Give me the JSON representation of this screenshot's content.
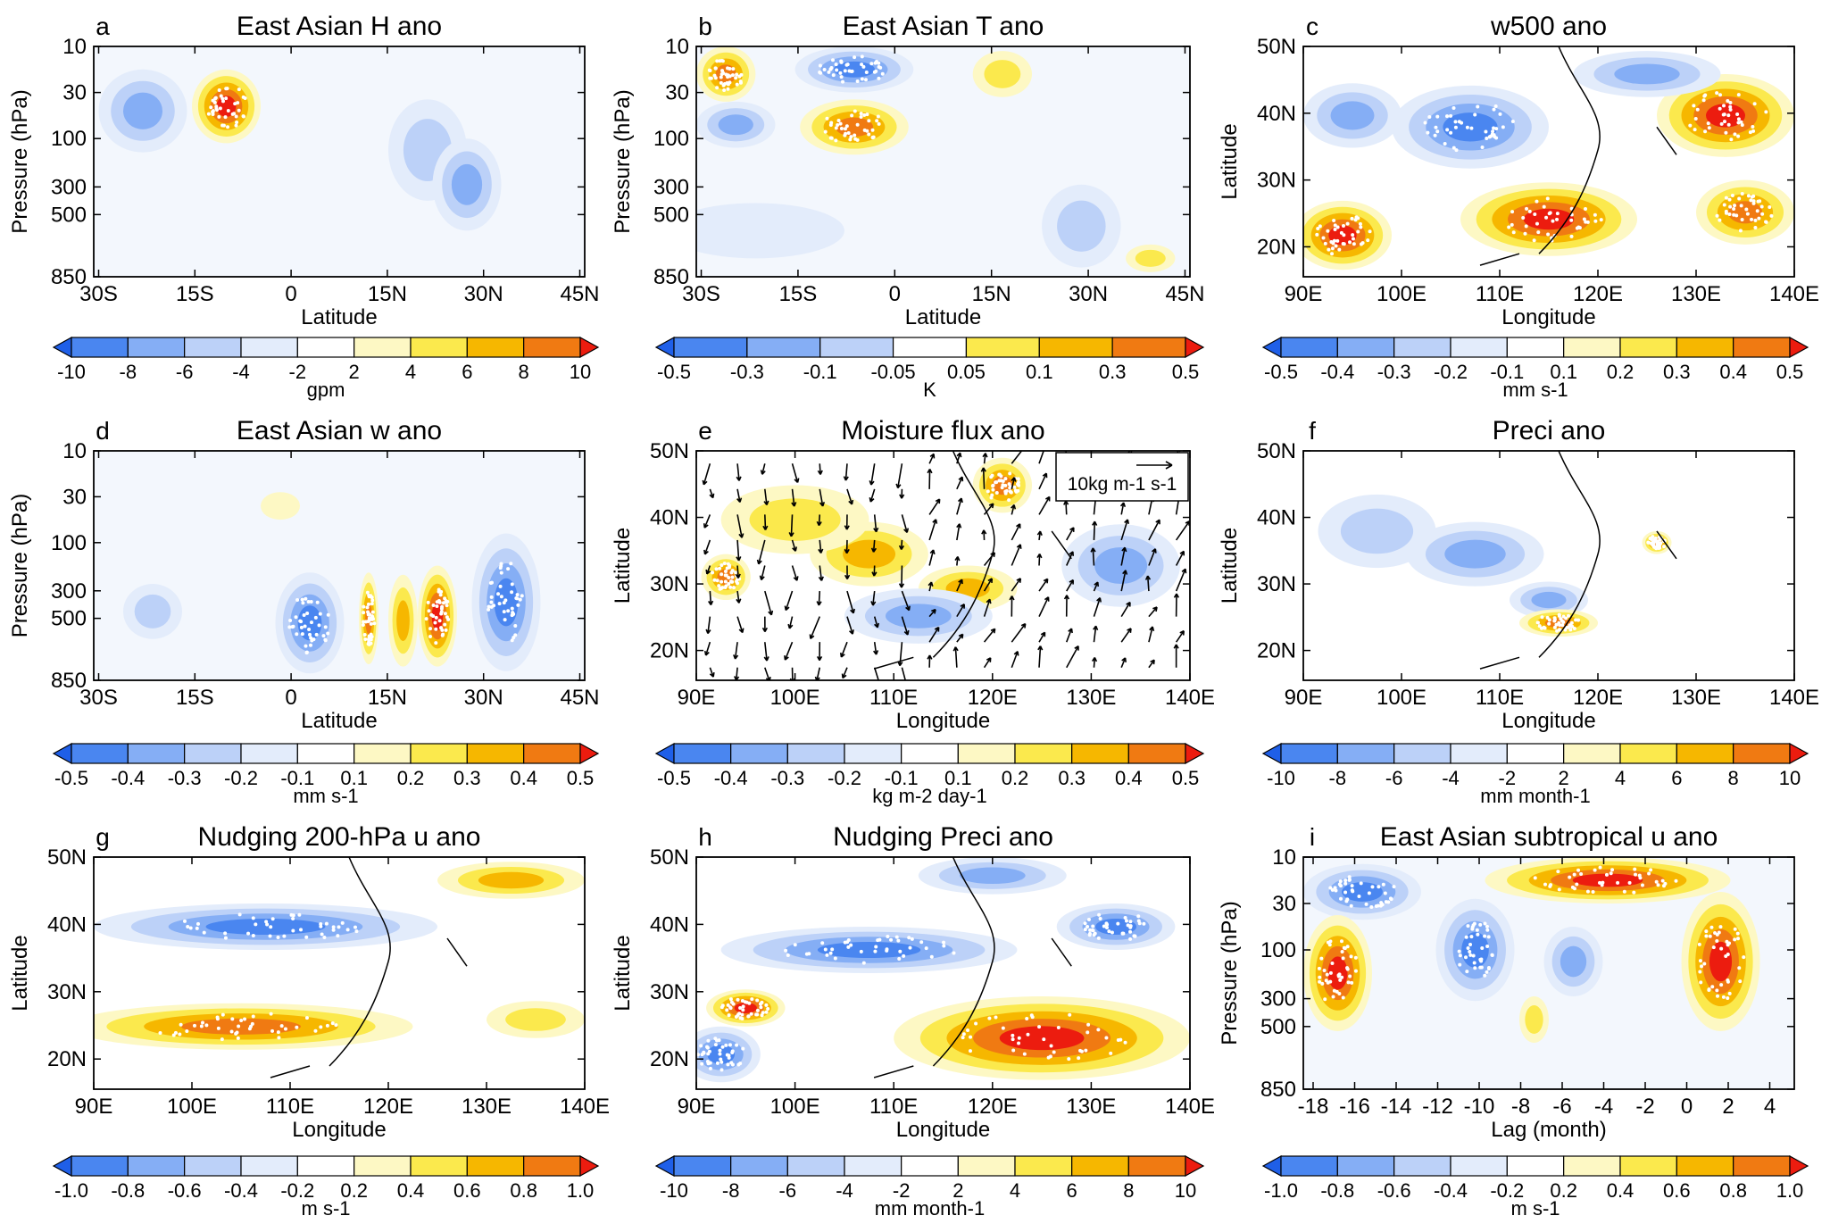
{
  "palette": {
    "neg": [
      "#1f5fe8",
      "#4a86f0",
      "#85aef5",
      "#bcd1f8",
      "#e3ecfb"
    ],
    "pos": [
      "#fdf8c4",
      "#fbe94d",
      "#f6b700",
      "#f07a12",
      "#ec1c0f"
    ],
    "outline": "#000000",
    "stipple": "#ffffff"
  },
  "axes": {
    "pressure_ticks": [
      "10",
      "30",
      "100",
      "300",
      "500",
      "850"
    ],
    "pressure_label": "Pressure (hPa)",
    "lat_ticks": [
      "30S",
      "15S",
      "0",
      "15N",
      "30N",
      "45N"
    ],
    "lat_label": "Latitude",
    "map_lat_ticks": [
      "50N",
      "40N",
      "30N",
      "20N"
    ],
    "lon_ticks": [
      "90E",
      "100E",
      "110E",
      "120E",
      "130E",
      "140E"
    ],
    "lon_label": "Longitude",
    "lag_ticks": [
      "-18",
      "-16",
      "-14",
      "-12",
      "-10",
      "-8",
      "-6",
      "-4",
      "-2",
      "0",
      "2",
      "4"
    ],
    "lag_label": "Lag (month)"
  },
  "chart_data": [
    {
      "id": "a",
      "type": "heatmap",
      "letter": "a",
      "title": "East Asian H ano",
      "xaxis": "lat",
      "yaxis": "pressure",
      "units": "gpm",
      "levels": [
        "-10",
        "-8",
        "-6",
        "-4",
        "-2",
        "2",
        "4",
        "6",
        "8",
        "10"
      ],
      "blobs": [
        [
          0.1,
          0.28,
          0.09,
          0.18,
          -3
        ],
        [
          0.27,
          0.26,
          0.07,
          0.16,
          5
        ],
        [
          0.68,
          0.45,
          0.08,
          0.22,
          -2
        ],
        [
          0.76,
          0.6,
          0.07,
          0.2,
          -3
        ]
      ]
    },
    {
      "id": "b",
      "type": "heatmap",
      "letter": "b",
      "title": "East Asian T ano",
      "xaxis": "lat",
      "yaxis": "pressure",
      "units": "K",
      "levels": [
        "-0.5",
        "-0.3",
        "-0.1",
        "-0.05",
        "0.05",
        "0.1",
        "0.3",
        "0.5"
      ],
      "blobs": [
        [
          0.06,
          0.12,
          0.06,
          0.12,
          4
        ],
        [
          0.32,
          0.1,
          0.12,
          0.1,
          -4
        ],
        [
          0.08,
          0.34,
          0.08,
          0.1,
          -3
        ],
        [
          0.32,
          0.35,
          0.11,
          0.12,
          4
        ],
        [
          0.62,
          0.12,
          0.06,
          0.1,
          2
        ],
        [
          0.78,
          0.78,
          0.08,
          0.18,
          -2
        ],
        [
          0.12,
          0.8,
          0.18,
          0.12,
          -1
        ],
        [
          0.92,
          0.92,
          0.05,
          0.06,
          2
        ]
      ]
    },
    {
      "id": "c",
      "type": "heatmap",
      "letter": "c",
      "title": "w500 ano",
      "xaxis": "lon",
      "yaxis": "maplat",
      "units": "mm s-1",
      "levels": [
        "-0.5",
        "-0.4",
        "-0.3",
        "-0.2",
        "-0.1",
        "0.1",
        "0.2",
        "0.3",
        "0.4",
        "0.5"
      ],
      "blobs": [
        [
          0.34,
          0.35,
          0.16,
          0.18,
          -4
        ],
        [
          0.1,
          0.3,
          0.1,
          0.14,
          -3
        ],
        [
          0.5,
          0.75,
          0.18,
          0.16,
          5
        ],
        [
          0.08,
          0.82,
          0.1,
          0.15,
          5
        ],
        [
          0.86,
          0.3,
          0.14,
          0.18,
          5
        ],
        [
          0.7,
          0.12,
          0.15,
          0.1,
          -3
        ],
        [
          0.9,
          0.72,
          0.1,
          0.14,
          4
        ]
      ]
    },
    {
      "id": "d",
      "type": "heatmap",
      "letter": "d",
      "title": "East Asian w ano",
      "xaxis": "lat",
      "yaxis": "pressure",
      "units": "mm s-1",
      "levels": [
        "-0.5",
        "-0.4",
        "-0.3",
        "-0.2",
        "-0.1",
        "0.1",
        "0.2",
        "0.3",
        "0.4",
        "0.5"
      ],
      "blobs": [
        [
          0.44,
          0.75,
          0.07,
          0.22,
          -4
        ],
        [
          0.56,
          0.73,
          0.02,
          0.2,
          4
        ],
        [
          0.63,
          0.74,
          0.03,
          0.2,
          3
        ],
        [
          0.7,
          0.72,
          0.04,
          0.22,
          5
        ],
        [
          0.84,
          0.66,
          0.07,
          0.3,
          -4
        ],
        [
          0.12,
          0.7,
          0.06,
          0.12,
          -2
        ],
        [
          0.38,
          0.24,
          0.04,
          0.06,
          1
        ]
      ]
    },
    {
      "id": "e",
      "type": "heatmap",
      "letter": "e",
      "title": "Moisture flux ano",
      "xaxis": "lon",
      "yaxis": "maplat",
      "units": "kg m-2 day-1",
      "vector_key": "10kg m-1 s-1",
      "levels": [
        "-0.5",
        "-0.4",
        "-0.3",
        "-0.2",
        "-0.1",
        "0.1",
        "0.2",
        "0.3",
        "0.4",
        "0.5"
      ],
      "blobs": [
        [
          0.35,
          0.45,
          0.12,
          0.14,
          3
        ],
        [
          0.55,
          0.6,
          0.1,
          0.1,
          3
        ],
        [
          0.06,
          0.55,
          0.05,
          0.1,
          4
        ],
        [
          0.45,
          0.72,
          0.15,
          0.12,
          -3
        ],
        [
          0.86,
          0.5,
          0.12,
          0.18,
          -3
        ],
        [
          0.62,
          0.15,
          0.06,
          0.12,
          4
        ],
        [
          0.2,
          0.3,
          0.15,
          0.15,
          2
        ]
      ]
    },
    {
      "id": "f",
      "type": "heatmap",
      "letter": "f",
      "title": "Preci ano",
      "xaxis": "lon",
      "yaxis": "maplat",
      "units": "mm month-1",
      "levels": [
        "-10",
        "-8",
        "-6",
        "-4",
        "-2",
        "2",
        "4",
        "6",
        "8",
        "10"
      ],
      "blobs": [
        [
          0.15,
          0.35,
          0.12,
          0.16,
          -2
        ],
        [
          0.35,
          0.45,
          0.14,
          0.14,
          -3
        ],
        [
          0.5,
          0.65,
          0.08,
          0.08,
          -3
        ],
        [
          0.52,
          0.75,
          0.08,
          0.06,
          4
        ],
        [
          0.72,
          0.4,
          0.03,
          0.05,
          4
        ]
      ]
    },
    {
      "id": "g",
      "type": "heatmap",
      "letter": "g",
      "title": "Nudging 200-hPa u ano",
      "xaxis": "lon",
      "yaxis": "maplat",
      "units": "m s-1",
      "levels": [
        "-1.0",
        "-0.8",
        "-0.6",
        "-0.4",
        "-0.2",
        "0.2",
        "0.4",
        "0.6",
        "0.8",
        "1.0"
      ],
      "blobs": [
        [
          0.35,
          0.3,
          0.35,
          0.1,
          -4
        ],
        [
          0.3,
          0.73,
          0.35,
          0.1,
          4
        ],
        [
          0.85,
          0.1,
          0.15,
          0.08,
          3
        ],
        [
          0.9,
          0.7,
          0.1,
          0.08,
          2
        ]
      ]
    },
    {
      "id": "h",
      "type": "heatmap",
      "letter": "h",
      "title": "Nudging Preci ano",
      "xaxis": "lon",
      "yaxis": "maplat",
      "units": "mm month-1",
      "levels": [
        "-10",
        "-8",
        "-6",
        "-4",
        "-2",
        "2",
        "4",
        "6",
        "8",
        "10"
      ],
      "blobs": [
        [
          0.35,
          0.4,
          0.3,
          0.1,
          -4
        ],
        [
          0.7,
          0.78,
          0.3,
          0.18,
          5
        ],
        [
          0.1,
          0.65,
          0.08,
          0.08,
          5
        ],
        [
          0.05,
          0.85,
          0.08,
          0.12,
          -4
        ],
        [
          0.6,
          0.08,
          0.15,
          0.08,
          -3
        ],
        [
          0.85,
          0.3,
          0.12,
          0.1,
          -4
        ]
      ]
    },
    {
      "id": "i",
      "type": "heatmap",
      "letter": "i",
      "title": "East Asian subtropical u ano",
      "xaxis": "lag",
      "yaxis": "pressure",
      "units": "m s-1",
      "levels": [
        "-1.0",
        "-0.8",
        "-0.6",
        "-0.4",
        "-0.2",
        "0.2",
        "0.4",
        "0.6",
        "0.8",
        "1.0"
      ],
      "blobs": [
        [
          0.12,
          0.15,
          0.12,
          0.12,
          -4
        ],
        [
          0.07,
          0.5,
          0.07,
          0.25,
          5
        ],
        [
          0.62,
          0.1,
          0.25,
          0.1,
          5
        ],
        [
          0.35,
          0.4,
          0.08,
          0.22,
          -4
        ],
        [
          0.85,
          0.45,
          0.08,
          0.3,
          5
        ],
        [
          0.55,
          0.45,
          0.06,
          0.15,
          -3
        ],
        [
          0.47,
          0.7,
          0.03,
          0.1,
          2
        ]
      ]
    }
  ]
}
